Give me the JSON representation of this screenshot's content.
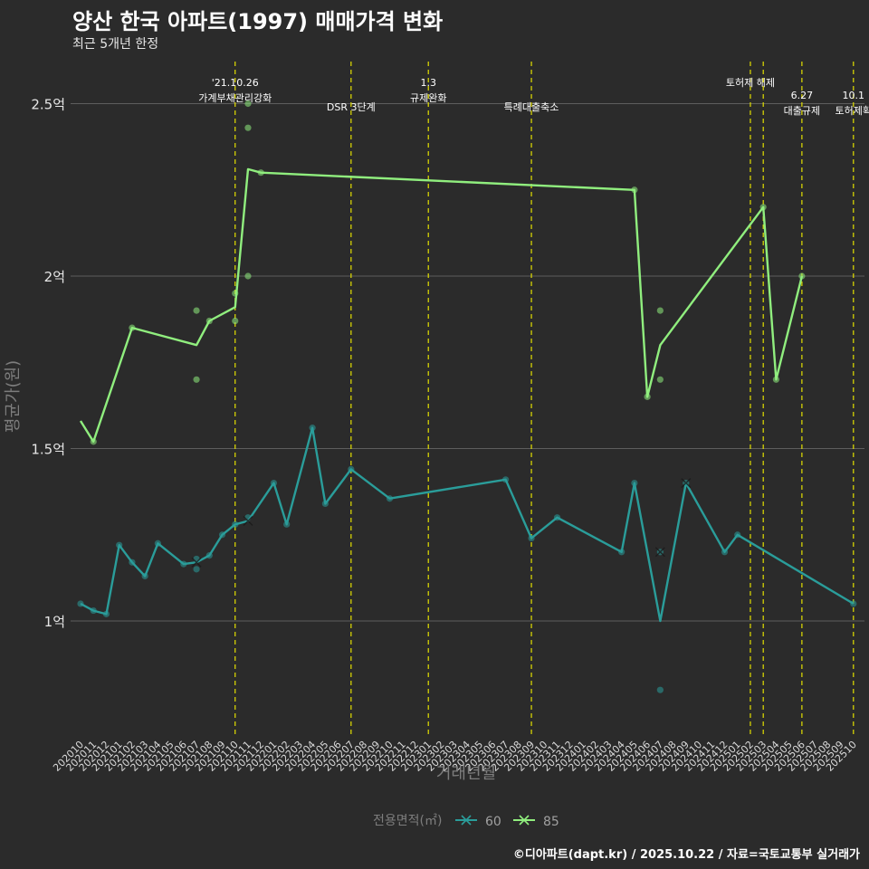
{
  "title": "양산 한국 아파트(1997) 매매가격 변화",
  "subtitle": "최근 5개년 한정",
  "caption": "©디아파트(dapt.kr) / 2025.10.22 / 자료=국토교통부 실거래가",
  "chart_data": {
    "type": "line",
    "title": "양산 한국 아파트(1997) 매매가격 변화",
    "xlabel": "거래년월",
    "ylabel": "평균가(원)",
    "ylim": [
      0.7,
      2.6
    ],
    "y_unit": "억",
    "y_ticks": [
      {
        "value": 1.0,
        "label": "1억"
      },
      {
        "value": 1.5,
        "label": "1.5억"
      },
      {
        "value": 2.0,
        "label": "2억"
      },
      {
        "value": 2.5,
        "label": "2.5억"
      }
    ],
    "x_ticks": [
      "202010",
      "202011",
      "202012",
      "202101",
      "202102",
      "202103",
      "202104",
      "202105",
      "202106",
      "202107",
      "202108",
      "202109",
      "202110",
      "202111",
      "202112",
      "202201",
      "202202",
      "202203",
      "202204",
      "202205",
      "202206",
      "202207",
      "202208",
      "202209",
      "202210",
      "202211",
      "202212",
      "202301",
      "202302",
      "202303",
      "202304",
      "202305",
      "202306",
      "202307",
      "202308",
      "202309",
      "202310",
      "202311",
      "202312",
      "202401",
      "202402",
      "202403",
      "202404",
      "202405",
      "202406",
      "202407",
      "202408",
      "202409",
      "202410",
      "202411",
      "202412",
      "202501",
      "202502",
      "202503",
      "202504",
      "202505",
      "202506",
      "202507",
      "202508",
      "202509",
      "202510"
    ],
    "legend_title": "전용면적(㎡)",
    "legend_position": "bottom",
    "series": [
      {
        "name": "60",
        "color": "#2a9d9a",
        "line": [
          [
            "202010",
            1.05
          ],
          [
            "202011",
            1.03
          ],
          [
            "202012",
            1.02
          ],
          [
            "202101",
            1.22
          ],
          [
            "202102",
            1.17
          ],
          [
            "202103",
            1.13
          ],
          [
            "202104",
            1.225
          ],
          [
            "202106",
            1.165
          ],
          [
            "202107",
            1.17
          ],
          [
            "202108",
            1.19
          ],
          [
            "202109",
            1.25
          ],
          [
            "202110",
            1.28
          ],
          [
            "202111",
            1.29
          ],
          [
            "202201",
            1.4
          ],
          [
            "202202",
            1.28
          ],
          [
            "202204",
            1.56
          ],
          [
            "202205",
            1.34
          ],
          [
            "202207",
            1.44
          ],
          [
            "202210",
            1.355
          ],
          [
            "202307",
            1.41
          ],
          [
            "202309",
            1.24
          ],
          [
            "202311",
            1.3
          ],
          [
            "202404",
            1.2
          ],
          [
            "202405",
            1.4
          ],
          [
            "202407",
            1.0
          ],
          [
            "202409",
            1.4
          ],
          [
            "202412",
            1.2
          ],
          [
            "202501",
            1.25
          ],
          [
            "202510",
            1.05
          ]
        ],
        "points": [
          [
            "202010",
            1.05
          ],
          [
            "202011",
            1.03
          ],
          [
            "202012",
            1.02
          ],
          [
            "202101",
            1.22
          ],
          [
            "202102",
            1.17
          ],
          [
            "202103",
            1.13
          ],
          [
            "202104",
            1.225
          ],
          [
            "202106",
            1.165
          ],
          [
            "202107",
            1.15
          ],
          [
            "202107",
            1.18
          ],
          [
            "202108",
            1.19
          ],
          [
            "202109",
            1.25
          ],
          [
            "202110",
            1.28
          ],
          [
            "202111",
            1.3
          ],
          [
            "202201",
            1.4
          ],
          [
            "202202",
            1.28
          ],
          [
            "202204",
            1.56
          ],
          [
            "202205",
            1.34
          ],
          [
            "202207",
            1.44
          ],
          [
            "202210",
            1.355
          ],
          [
            "202307",
            1.41
          ],
          [
            "202309",
            1.24
          ],
          [
            "202311",
            1.3
          ],
          [
            "202404",
            1.2
          ],
          [
            "202405",
            1.4
          ],
          [
            "202407",
            1.2
          ],
          [
            "202407",
            0.8
          ],
          [
            "202409",
            1.4
          ],
          [
            "202412",
            1.2
          ],
          [
            "202501",
            1.25
          ],
          [
            "202510",
            1.05
          ]
        ],
        "cross_points": [
          [
            "202107",
            1.17
          ],
          [
            "202111",
            1.29
          ],
          [
            "202407",
            1.2
          ],
          [
            "202409",
            1.4
          ]
        ]
      },
      {
        "name": "85",
        "color": "#90ee7e",
        "line": [
          [
            "202010",
            1.58
          ],
          [
            "202011",
            1.52
          ],
          [
            "202102",
            1.85
          ],
          [
            "202107",
            1.8
          ],
          [
            "202108",
            1.87
          ],
          [
            "202110",
            1.91
          ],
          [
            "202111",
            2.31
          ],
          [
            "202112",
            2.3
          ],
          [
            "202405",
            2.25
          ],
          [
            "202406",
            1.65
          ],
          [
            "202407",
            1.8
          ],
          [
            "202503",
            2.2
          ],
          [
            "202504",
            1.7
          ],
          [
            "202506",
            2.0
          ]
        ],
        "points": [
          [
            "202011",
            1.52
          ],
          [
            "202102",
            1.85
          ],
          [
            "202107",
            1.7
          ],
          [
            "202107",
            1.9
          ],
          [
            "202108",
            1.87
          ],
          [
            "202110",
            1.87
          ],
          [
            "202110",
            1.95
          ],
          [
            "202111",
            2.0
          ],
          [
            "202111",
            2.43
          ],
          [
            "202111",
            2.5
          ],
          [
            "202112",
            2.3
          ],
          [
            "202405",
            2.25
          ],
          [
            "202406",
            1.65
          ],
          [
            "202407",
            1.7
          ],
          [
            "202407",
            1.9
          ],
          [
            "202503",
            2.2
          ],
          [
            "202504",
            1.7
          ],
          [
            "202506",
            2.0
          ]
        ],
        "cross_points": []
      }
    ],
    "events": [
      {
        "month": "202110",
        "lines": [
          "'21.10.26",
          "가계부채관리강화"
        ],
        "row": 0
      },
      {
        "month": "202207",
        "lines": [
          "DSR 3단계"
        ],
        "row": 1
      },
      {
        "month": "202301",
        "lines": [
          "1.3",
          "규제완화"
        ],
        "row": 0
      },
      {
        "month": "202309",
        "lines": [
          "특례대출축소"
        ],
        "row": 1
      },
      {
        "month": "202502",
        "lines": [
          "토허제 해제"
        ],
        "row": 0
      },
      {
        "month": "202503",
        "lines": [],
        "row": 0
      },
      {
        "month": "202506",
        "lines": [
          "6.27",
          "대출규제"
        ],
        "row": 1
      },
      {
        "month": "202510",
        "lines": [
          "10.1",
          "토허제확"
        ],
        "row": 1
      }
    ]
  }
}
